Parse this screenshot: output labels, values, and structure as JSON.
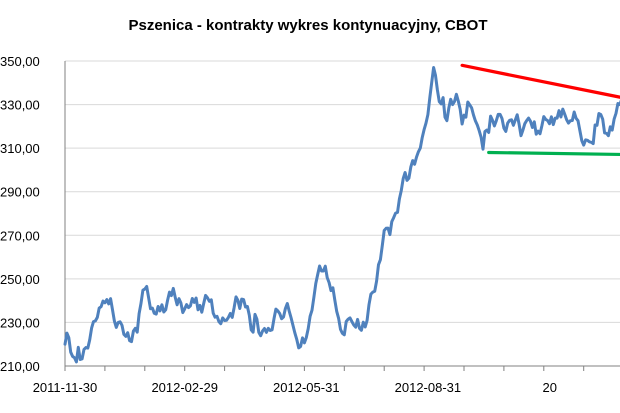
{
  "chart_data": {
    "type": "line",
    "title": "Pszenica - kontrakty wykres kontynuacyjny, CBOT",
    "xlabel": "",
    "ylabel": "",
    "ylim": [
      210,
      350
    ],
    "yticks": [
      "350,00",
      "330,00",
      "310,00",
      "290,00",
      "270,00",
      "250,00",
      "230,00",
      "210,00"
    ],
    "yticks_values": [
      350,
      330,
      310,
      290,
      270,
      250,
      230,
      210
    ],
    "xticks": [
      "2011-11-30",
      "2012-02-29",
      "2012-05-31",
      "2012-08-31",
      "20"
    ],
    "xticks_index": [
      0,
      63,
      127,
      191,
      255
    ],
    "grid": "horizontal",
    "legend": "none",
    "colors": {
      "series": "#4f81bd",
      "trend_top": "#ff0000",
      "trend_bottom": "#00b050",
      "grid": "#d9d9d9",
      "axis": "#808080"
    },
    "series": [
      {
        "values": [
          220,
          225.1,
          223,
          216.4,
          214.4,
          213.8,
          211.9,
          218.6,
          213,
          213.3,
          217.6,
          218.5,
          218.2,
          222,
          227.4,
          230.4,
          230.7,
          232.3,
          236.6,
          237.2,
          239.8,
          239,
          240.5,
          238.5,
          240.9,
          235.8,
          230.6,
          227.7,
          230,
          230.3,
          228.7,
          224.5,
          223.6,
          225.3,
          221.6,
          221.2,
          226,
          227.3,
          225.5,
          234,
          238.8,
          244.8,
          245.3,
          246.5,
          241.4,
          236.3,
          236.6,
          234.2,
          233.8,
          237.3,
          235.3,
          238.1,
          234.8,
          235.8,
          240.2,
          243.9,
          242.3,
          245.6,
          241.6,
          238.1,
          240.9,
          238.9,
          234.5,
          236.2,
          238.2,
          236.8,
          237.6,
          241,
          239.2,
          241.2,
          235.8,
          237.8,
          234.7,
          238.7,
          242.4,
          241.3,
          239.7,
          240.4,
          234.3,
          232.4,
          232.8,
          230.4,
          229.4,
          232.1,
          230.9,
          231,
          232.3,
          234.1,
          232.3,
          236.7,
          241.7,
          240.1,
          236.4,
          240.7,
          240.5,
          237.1,
          237.3,
          233.3,
          226.6,
          225.5,
          233.7,
          231.5,
          225.4,
          223.9,
          226.1,
          227.2,
          225.4,
          227.3,
          226.3,
          226.6,
          231.7,
          236.1,
          235.3,
          234.1,
          231.7,
          232.5,
          236.4,
          238.7,
          235.2,
          232.1,
          228.6,
          225.1,
          222.1,
          218.3,
          219,
          222.9,
          220.6,
          223.1,
          227.1,
          232.8,
          235.6,
          241.6,
          247.9,
          252,
          255.9,
          253.6,
          253.6,
          255.8,
          250.6,
          248.3,
          244.6,
          245.9,
          240.3,
          235.1,
          231.9,
          226.8,
          225,
          224.3,
          230.4,
          231.5,
          232.1,
          230.4,
          228.8,
          227.8,
          231.4,
          227.3,
          226.4,
          230.1,
          227.9,
          231,
          238.2,
          243,
          243.9,
          244.3,
          249,
          256.5,
          258.8,
          265.3,
          272.2,
          273.2,
          273.3,
          270.3,
          276.3,
          278.1,
          280.2,
          280.5,
          286.7,
          290.6,
          296,
          298.8,
          295.2,
          296.2,
          301.3,
          304.3,
          302.6,
          305.9,
          308.3,
          310,
          314.8,
          318.5,
          321.5,
          325.4,
          333.1,
          340.1,
          347,
          343.4,
          336.7,
          331.3,
          330.3,
          333.2,
          324.2,
          322.6,
          328.4,
          332.4,
          330,
          331.4,
          334.7,
          331.6,
          327.8,
          321.1,
          325.1,
          324.2,
          331.2,
          329.9,
          328.5,
          325.2,
          322.5,
          320.6,
          318,
          315,
          309.5,
          317.6,
          318.3,
          317.2,
          324.7,
          322.8,
          320.2,
          322.6,
          325.5,
          325.5,
          323.6,
          319.2,
          317.7,
          321.5,
          322.8,
          323,
          320.5,
          322.9,
          325.3,
          321,
          315.7,
          318.3,
          321.2,
          322.7,
          323.8,
          322.3,
          319.5,
          322.1,
          316.4,
          317.8,
          316.6,
          320.3,
          324.5,
          323.2,
          322.7,
          321.2,
          324.4,
          320.8,
          323.8,
          323.8,
          327.2,
          324.3,
          327.9,
          325.6,
          323.1,
          321.5,
          322.6,
          322.7,
          326.6,
          323.7,
          322.6,
          318,
          313.4,
          311.4,
          313.8,
          313.6,
          312.9,
          312.7,
          312.1,
          320.6,
          320.5,
          325.9,
          325.4,
          323.3,
          317,
          316.8,
          315.7,
          319.8,
          318.3,
          323.3,
          326,
          330.5,
          330,
          332.4,
          326,
          324.5,
          325.6,
          324.3,
          322.3,
          321.8,
          319.1,
          313.9,
          310.3
        ]
      }
    ],
    "trendlines": [
      {
        "color": "#ff0000",
        "from": [
          209,
          348
        ],
        "to": [
          300,
          332
        ]
      },
      {
        "color": "#00b050",
        "from": [
          223,
          308
        ],
        "to": [
          300,
          307
        ]
      }
    ]
  }
}
